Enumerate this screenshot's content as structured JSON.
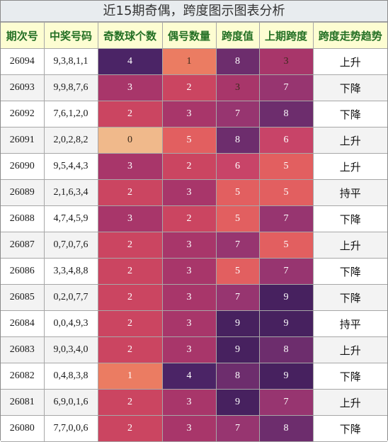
{
  "title": "近15期奇偶，跨度图示图表分析",
  "columns": [
    "期次号",
    "中奖号码",
    "奇数球个数",
    "偶号数量",
    "跨度值",
    "上期跨度",
    "跨度走势趋势"
  ],
  "palette": {
    "0": "#f0b98b",
    "1": "#eb7c62",
    "2": "#cb4561",
    "3": "#a8366a",
    "4": "#4b2466",
    "5": "#e25f60",
    "6": "#c84468",
    "7": "#973570",
    "8": "#6d2d6d",
    "9": "#47215f",
    "header_text": "#247024",
    "header_bg": "#fdfdd2",
    "title_bg": "#e8ecef"
  },
  "chart_data": {
    "type": "table",
    "title": "近15期奇偶，跨度图示图表分析",
    "columns": [
      "期次号",
      "中奖号码",
      "奇数球个数",
      "偶号数量",
      "跨度值",
      "上期跨度",
      "跨度走势趋势"
    ],
    "rows": [
      {
        "period": "26094",
        "numbers": "9,3,8,1,1",
        "odd": 4,
        "even": 1,
        "span": 8,
        "prev_span": 3,
        "trend": "上升"
      },
      {
        "period": "26093",
        "numbers": "9,9,8,7,6",
        "odd": 3,
        "even": 2,
        "span": 3,
        "prev_span": 7,
        "trend": "下降"
      },
      {
        "period": "26092",
        "numbers": "7,6,1,2,0",
        "odd": 2,
        "even": 3,
        "span": 7,
        "prev_span": 8,
        "trend": "下降"
      },
      {
        "period": "26091",
        "numbers": "2,0,2,8,2",
        "odd": 0,
        "even": 5,
        "span": 8,
        "prev_span": 6,
        "trend": "上升"
      },
      {
        "period": "26090",
        "numbers": "9,5,4,4,3",
        "odd": 3,
        "even": 2,
        "span": 6,
        "prev_span": 5,
        "trend": "上升"
      },
      {
        "period": "26089",
        "numbers": "2,1,6,3,4",
        "odd": 2,
        "even": 3,
        "span": 5,
        "prev_span": 5,
        "trend": "持平"
      },
      {
        "period": "26088",
        "numbers": "4,7,4,5,9",
        "odd": 3,
        "even": 2,
        "span": 5,
        "prev_span": 7,
        "trend": "下降"
      },
      {
        "period": "26087",
        "numbers": "0,7,0,7,6",
        "odd": 2,
        "even": 3,
        "span": 7,
        "prev_span": 5,
        "trend": "上升"
      },
      {
        "period": "26086",
        "numbers": "3,3,4,8,8",
        "odd": 2,
        "even": 3,
        "span": 5,
        "prev_span": 7,
        "trend": "下降"
      },
      {
        "period": "26085",
        "numbers": "0,2,0,7,7",
        "odd": 2,
        "even": 3,
        "span": 7,
        "prev_span": 9,
        "trend": "下降"
      },
      {
        "period": "26084",
        "numbers": "0,0,4,9,3",
        "odd": 2,
        "even": 3,
        "span": 9,
        "prev_span": 9,
        "trend": "持平"
      },
      {
        "period": "26083",
        "numbers": "9,0,3,4,0",
        "odd": 2,
        "even": 3,
        "span": 9,
        "prev_span": 8,
        "trend": "上升"
      },
      {
        "period": "26082",
        "numbers": "0,4,8,3,8",
        "odd": 1,
        "even": 4,
        "span": 8,
        "prev_span": 9,
        "trend": "下降"
      },
      {
        "period": "26081",
        "numbers": "6,9,0,1,6",
        "odd": 2,
        "even": 3,
        "span": 9,
        "prev_span": 7,
        "trend": "上升"
      },
      {
        "period": "26080",
        "numbers": "7,7,0,0,6",
        "odd": 2,
        "even": 3,
        "span": 7,
        "prev_span": 8,
        "trend": "下降"
      }
    ]
  }
}
